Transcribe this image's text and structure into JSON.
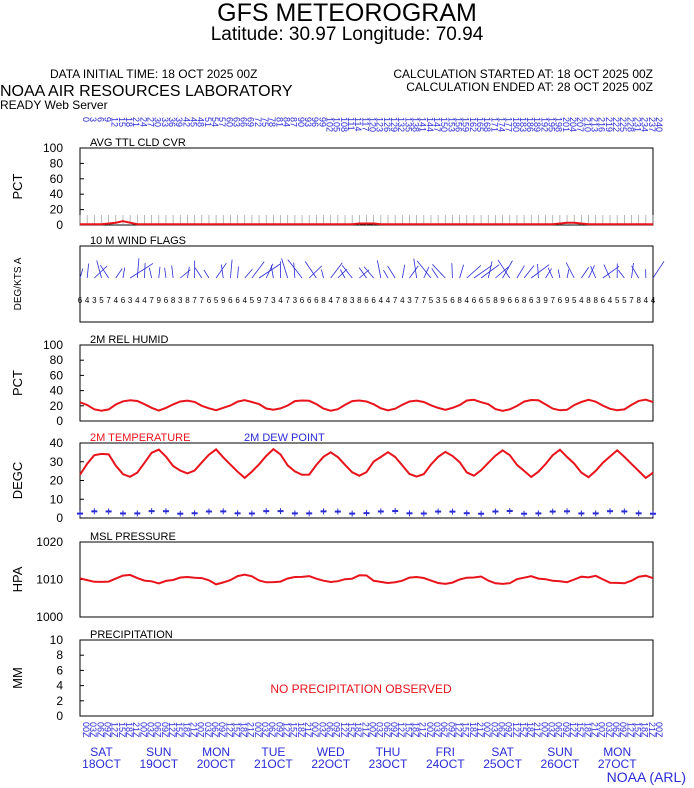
{
  "header": {
    "title": "GFS METEOROGRAM",
    "subtitle": "Latitude: 30.97 Longitude:  70.94",
    "init_time": "DATA INITIAL TIME: 18 OCT 2025 00Z",
    "calc_start": "CALCULATION STARTED AT: 18 OCT 2025 00Z",
    "calc_end": "CALCULATION ENDED AT: 28 OCT 2025 00Z",
    "lab": "NOAA AIR RESOURCES LABORATORY",
    "server": "READY Web Server",
    "credit": "NOAA (ARL)"
  },
  "colors": {
    "red": "#e8141c",
    "blue": "#2b2bd6",
    "gray": "#9a9a9a",
    "axis": "#000000"
  },
  "chart_data": {
    "x": {
      "start_hour": 0,
      "end_hour": 240,
      "step_hours": 3,
      "days": [
        {
          "dow": "SAT",
          "date": "18OCT"
        },
        {
          "dow": "SUN",
          "date": "19OCT"
        },
        {
          "dow": "MON",
          "date": "20OCT"
        },
        {
          "dow": "TUE",
          "date": "21OCT"
        },
        {
          "dow": "WED",
          "date": "22OCT"
        },
        {
          "dow": "THU",
          "date": "23OCT"
        },
        {
          "dow": "FRI",
          "date": "24OCT"
        },
        {
          "dow": "SAT",
          "date": "25OCT"
        },
        {
          "dow": "SUN",
          "date": "26OCT"
        },
        {
          "dow": "MON",
          "date": "27OCT"
        }
      ],
      "bottom_tick_labels": [
        "00",
        "03",
        "06",
        "09",
        "12",
        "15",
        "18",
        "21"
      ]
    },
    "panels": [
      {
        "id": "cloud",
        "type": "area",
        "title": "AVG TTL CLD CVR",
        "ylabel": "PCT",
        "ylim": [
          0,
          100
        ],
        "yticks": [
          0,
          20,
          40,
          60,
          80,
          100
        ],
        "series": [
          {
            "color": "red",
            "values": [
              1,
              1,
              1,
              1,
              2,
              3,
              5,
              3,
              1,
              1,
              1,
              1,
              1,
              1,
              1,
              1,
              1,
              1,
              1,
              1,
              1,
              1,
              1,
              1,
              1,
              1,
              1,
              1,
              1,
              1,
              1,
              1,
              1,
              1,
              1,
              1,
              1,
              1,
              1,
              2,
              2,
              2,
              1,
              1,
              1,
              1,
              1,
              1,
              1,
              1,
              1,
              1,
              1,
              1,
              1,
              1,
              1,
              1,
              1,
              1,
              1,
              1,
              1,
              1,
              1,
              1,
              1,
              2,
              3,
              3,
              2,
              1,
              1,
              1,
              1,
              1,
              1,
              1,
              1,
              1,
              1,
              1,
              1,
              1,
              1,
              1,
              1,
              1,
              1,
              1,
              1,
              1,
              1,
              1,
              1,
              1,
              1,
              1,
              1,
              1,
              1,
              1,
              1,
              1,
              1,
              1,
              1,
              1,
              1,
              1,
              1,
              1,
              1,
              1,
              1,
              1,
              1,
              1,
              1,
              1,
              1
            ]
          }
        ]
      },
      {
        "id": "wind",
        "type": "wind",
        "title": "10 M  WIND FLAGS",
        "ylabel": "DEG/KTS  A"
      },
      {
        "id": "rh",
        "type": "line",
        "title": "2M REL HUMID",
        "ylabel": "PCT",
        "ylim": [
          0,
          100
        ],
        "yticks": [
          0,
          20,
          40,
          60,
          80,
          100
        ],
        "series": [
          {
            "color": "red",
            "base": 21,
            "amp": 7
          }
        ]
      },
      {
        "id": "temp",
        "type": "line",
        "title": "2M TEMPERATURE",
        "title2": "2M   DEW POINT",
        "ylabel": "DEGC",
        "ylim": [
          0,
          40
        ],
        "yticks": [
          0,
          10,
          20,
          30,
          40
        ],
        "series": [
          {
            "name": "2M TEMPERATURE",
            "color": "red",
            "base": 29,
            "amp": 6.5
          },
          {
            "name": "2M   DEW POINT",
            "color": "blue",
            "base": 3,
            "amp": 0.8,
            "style": "markers"
          }
        ]
      },
      {
        "id": "pres",
        "type": "line",
        "title": "MSL PRESSURE",
        "ylabel": "HPA",
        "ylim": [
          1000,
          1020
        ],
        "yticks": [
          1000,
          1010,
          1020
        ],
        "series": [
          {
            "color": "red",
            "base": 1010,
            "amp": 2.2
          }
        ]
      },
      {
        "id": "precip",
        "type": "empty",
        "title": "PRECIPITATION",
        "ylabel": "MM",
        "ylim": [
          0,
          10
        ],
        "yticks": [
          0,
          2,
          4,
          6,
          8,
          10
        ],
        "annotation": "NO PRECIPITATION OBSERVED"
      }
    ]
  }
}
